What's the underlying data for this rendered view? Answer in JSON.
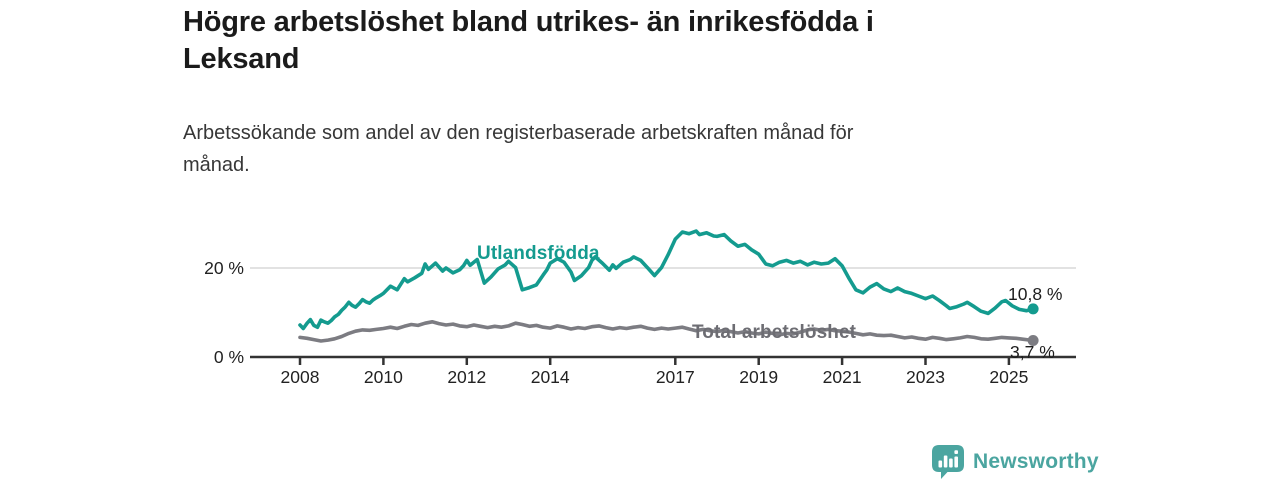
{
  "header": {
    "title": "Högre arbetslöshet bland utrikes- än inrikesfödda i\nLeksand",
    "subtitle": "Arbetssökande som andel av den registerbaserade arbetskraften månad för\nmånad."
  },
  "colors": {
    "title_text": "#1b1b1b",
    "subtitle_text": "#373737",
    "axis": "#333333",
    "gridline": "#d9d9d9",
    "tick_text": "#222222",
    "series_foreign": "#149b8f",
    "series_total": "#7c7c82",
    "series_total_label": "#6d6d73",
    "end_label_text": "#1d1d1d",
    "brand_teal": "#4ba5a0"
  },
  "footer": {
    "brand": "Newsworthy",
    "logo_icon": "bar-chart-speech-bubble-icon"
  },
  "chart_data": {
    "type": "line",
    "title": "Högre arbetslöshet bland utrikes- än inrikesfödda i Leksand",
    "subtitle": "Arbetssökande som andel av den registerbaserade arbetskraften månad för månad.",
    "xlabel": "",
    "ylabel": "",
    "x_range": [
      2008,
      2025.8
    ],
    "ylim": [
      0,
      30
    ],
    "grid": "horizontal-at-20-only",
    "legend_position": "inline-labels-on-lines",
    "y_ticks": [
      {
        "value": 20,
        "label": "20 %"
      },
      {
        "value": 0,
        "label": "0 %"
      }
    ],
    "x_ticks": [
      {
        "value": 2008,
        "label": "2008"
      },
      {
        "value": 2010,
        "label": "2010"
      },
      {
        "value": 2012,
        "label": "2012"
      },
      {
        "value": 2014,
        "label": "2014"
      },
      {
        "value": 2017,
        "label": "2017"
      },
      {
        "value": 2019,
        "label": "2019"
      },
      {
        "value": 2021,
        "label": "2021"
      },
      {
        "value": 2023,
        "label": "2023"
      },
      {
        "value": 2025,
        "label": "2025"
      }
    ],
    "series": [
      {
        "name": "Utlandsfödda",
        "color": "#149b8f",
        "end_value": 10.8,
        "end_label": "10,8 %",
        "points": [
          [
            2008.0,
            7.2
          ],
          [
            2008.08,
            6.4
          ],
          [
            2008.17,
            7.6
          ],
          [
            2008.25,
            8.4
          ],
          [
            2008.33,
            7.1
          ],
          [
            2008.42,
            6.7
          ],
          [
            2008.5,
            8.3
          ],
          [
            2008.58,
            7.9
          ],
          [
            2008.67,
            7.6
          ],
          [
            2008.75,
            8.2
          ],
          [
            2008.83,
            9.0
          ],
          [
            2008.92,
            9.6
          ],
          [
            2009.0,
            10.5
          ],
          [
            2009.08,
            11.2
          ],
          [
            2009.17,
            12.3
          ],
          [
            2009.25,
            11.6
          ],
          [
            2009.33,
            11.2
          ],
          [
            2009.42,
            12.0
          ],
          [
            2009.5,
            12.9
          ],
          [
            2009.58,
            12.4
          ],
          [
            2009.67,
            12.1
          ],
          [
            2009.75,
            12.8
          ],
          [
            2009.83,
            13.3
          ],
          [
            2009.92,
            13.8
          ],
          [
            2010.0,
            14.3
          ],
          [
            2010.17,
            15.9
          ],
          [
            2010.33,
            15.1
          ],
          [
            2010.5,
            17.6
          ],
          [
            2010.58,
            16.9
          ],
          [
            2010.75,
            17.8
          ],
          [
            2010.92,
            18.8
          ],
          [
            2011.0,
            20.9
          ],
          [
            2011.08,
            19.7
          ],
          [
            2011.25,
            21.1
          ],
          [
            2011.42,
            19.3
          ],
          [
            2011.5,
            20.0
          ],
          [
            2011.67,
            18.9
          ],
          [
            2011.83,
            19.6
          ],
          [
            2011.92,
            20.5
          ],
          [
            2012.0,
            21.7
          ],
          [
            2012.08,
            20.6
          ],
          [
            2012.25,
            21.9
          ],
          [
            2012.42,
            16.6
          ],
          [
            2012.58,
            18.0
          ],
          [
            2012.75,
            19.8
          ],
          [
            2012.92,
            20.7
          ],
          [
            2013.0,
            21.5
          ],
          [
            2013.17,
            20.1
          ],
          [
            2013.33,
            15.1
          ],
          [
            2013.5,
            15.6
          ],
          [
            2013.67,
            16.2
          ],
          [
            2013.83,
            18.4
          ],
          [
            2013.92,
            19.6
          ],
          [
            2014.0,
            21.1
          ],
          [
            2014.17,
            22.1
          ],
          [
            2014.33,
            21.3
          ],
          [
            2014.5,
            19.1
          ],
          [
            2014.58,
            17.2
          ],
          [
            2014.75,
            18.3
          ],
          [
            2014.92,
            20.1
          ],
          [
            2015.0,
            21.7
          ],
          [
            2015.08,
            22.5
          ],
          [
            2015.25,
            21.1
          ],
          [
            2015.42,
            19.5
          ],
          [
            2015.5,
            20.7
          ],
          [
            2015.58,
            19.9
          ],
          [
            2015.75,
            21.3
          ],
          [
            2015.92,
            21.9
          ],
          [
            2016.0,
            22.5
          ],
          [
            2016.17,
            21.7
          ],
          [
            2016.33,
            20.1
          ],
          [
            2016.5,
            18.3
          ],
          [
            2016.67,
            20.1
          ],
          [
            2016.83,
            23.0
          ],
          [
            2017.0,
            26.5
          ],
          [
            2017.17,
            28.1
          ],
          [
            2017.33,
            27.7
          ],
          [
            2017.5,
            28.3
          ],
          [
            2017.58,
            27.5
          ],
          [
            2017.75,
            27.9
          ],
          [
            2017.92,
            27.2
          ],
          [
            2018.0,
            27.1
          ],
          [
            2018.17,
            27.5
          ],
          [
            2018.33,
            26.1
          ],
          [
            2018.5,
            24.9
          ],
          [
            2018.67,
            25.3
          ],
          [
            2018.83,
            24.1
          ],
          [
            2019.0,
            23.1
          ],
          [
            2019.17,
            20.9
          ],
          [
            2019.33,
            20.5
          ],
          [
            2019.5,
            21.3
          ],
          [
            2019.67,
            21.7
          ],
          [
            2019.83,
            21.1
          ],
          [
            2020.0,
            21.5
          ],
          [
            2020.17,
            20.7
          ],
          [
            2020.33,
            21.3
          ],
          [
            2020.5,
            20.9
          ],
          [
            2020.67,
            21.1
          ],
          [
            2020.83,
            22.1
          ],
          [
            2021.0,
            20.5
          ],
          [
            2021.17,
            17.6
          ],
          [
            2021.33,
            15.1
          ],
          [
            2021.5,
            14.4
          ],
          [
            2021.67,
            15.7
          ],
          [
            2021.83,
            16.5
          ],
          [
            2022.0,
            15.3
          ],
          [
            2022.17,
            14.7
          ],
          [
            2022.33,
            15.5
          ],
          [
            2022.5,
            14.7
          ],
          [
            2022.67,
            14.3
          ],
          [
            2022.83,
            13.7
          ],
          [
            2023.0,
            13.1
          ],
          [
            2023.17,
            13.7
          ],
          [
            2023.33,
            12.7
          ],
          [
            2023.5,
            11.5
          ],
          [
            2023.58,
            10.9
          ],
          [
            2023.75,
            11.3
          ],
          [
            2023.92,
            11.9
          ],
          [
            2024.0,
            12.3
          ],
          [
            2024.17,
            11.3
          ],
          [
            2024.33,
            10.3
          ],
          [
            2024.5,
            9.8
          ],
          [
            2024.67,
            11.0
          ],
          [
            2024.83,
            12.4
          ],
          [
            2024.92,
            12.7
          ],
          [
            2025.08,
            11.5
          ],
          [
            2025.25,
            10.7
          ],
          [
            2025.42,
            10.4
          ],
          [
            2025.58,
            10.8
          ]
        ]
      },
      {
        "name": "Total arbetslöshet",
        "color": "#7c7c82",
        "end_value": 3.7,
        "end_label": "3,7 %",
        "points": [
          [
            2008.0,
            4.4
          ],
          [
            2008.17,
            4.2
          ],
          [
            2008.33,
            3.9
          ],
          [
            2008.5,
            3.6
          ],
          [
            2008.67,
            3.8
          ],
          [
            2008.83,
            4.1
          ],
          [
            2009.0,
            4.6
          ],
          [
            2009.17,
            5.3
          ],
          [
            2009.33,
            5.8
          ],
          [
            2009.5,
            6.1
          ],
          [
            2009.67,
            6.0
          ],
          [
            2009.83,
            6.2
          ],
          [
            2010.0,
            6.4
          ],
          [
            2010.17,
            6.7
          ],
          [
            2010.33,
            6.4
          ],
          [
            2010.5,
            6.9
          ],
          [
            2010.67,
            7.3
          ],
          [
            2010.83,
            7.1
          ],
          [
            2011.0,
            7.6
          ],
          [
            2011.17,
            7.9
          ],
          [
            2011.33,
            7.5
          ],
          [
            2011.5,
            7.2
          ],
          [
            2011.67,
            7.4
          ],
          [
            2011.83,
            7.0
          ],
          [
            2012.0,
            6.8
          ],
          [
            2012.17,
            7.2
          ],
          [
            2012.33,
            6.9
          ],
          [
            2012.5,
            6.6
          ],
          [
            2012.67,
            6.9
          ],
          [
            2012.83,
            6.7
          ],
          [
            2013.0,
            7.0
          ],
          [
            2013.17,
            7.6
          ],
          [
            2013.33,
            7.3
          ],
          [
            2013.5,
            6.9
          ],
          [
            2013.67,
            7.1
          ],
          [
            2013.83,
            6.7
          ],
          [
            2014.0,
            6.5
          ],
          [
            2014.17,
            7.0
          ],
          [
            2014.33,
            6.7
          ],
          [
            2014.5,
            6.3
          ],
          [
            2014.67,
            6.6
          ],
          [
            2014.83,
            6.4
          ],
          [
            2015.0,
            6.8
          ],
          [
            2015.17,
            7.0
          ],
          [
            2015.33,
            6.6
          ],
          [
            2015.5,
            6.3
          ],
          [
            2015.67,
            6.6
          ],
          [
            2015.83,
            6.4
          ],
          [
            2016.0,
            6.7
          ],
          [
            2016.17,
            6.9
          ],
          [
            2016.33,
            6.5
          ],
          [
            2016.5,
            6.2
          ],
          [
            2016.67,
            6.5
          ],
          [
            2016.83,
            6.3
          ],
          [
            2017.0,
            6.5
          ],
          [
            2017.17,
            6.7
          ],
          [
            2017.33,
            6.3
          ],
          [
            2017.5,
            5.9
          ],
          [
            2017.67,
            6.2
          ],
          [
            2017.83,
            5.9
          ],
          [
            2018.0,
            5.7
          ],
          [
            2018.17,
            6.0
          ],
          [
            2018.33,
            5.7
          ],
          [
            2018.5,
            5.4
          ],
          [
            2018.67,
            5.7
          ],
          [
            2018.83,
            5.4
          ],
          [
            2019.0,
            5.2
          ],
          [
            2019.17,
            5.6
          ],
          [
            2019.33,
            5.3
          ],
          [
            2019.5,
            5.0
          ],
          [
            2019.67,
            5.3
          ],
          [
            2019.83,
            5.2
          ],
          [
            2020.0,
            5.6
          ],
          [
            2020.17,
            6.1
          ],
          [
            2020.33,
            6.3
          ],
          [
            2020.5,
            6.0
          ],
          [
            2020.67,
            6.2
          ],
          [
            2020.83,
            5.9
          ],
          [
            2021.0,
            5.8
          ],
          [
            2021.17,
            5.6
          ],
          [
            2021.33,
            5.3
          ],
          [
            2021.5,
            5.0
          ],
          [
            2021.67,
            5.2
          ],
          [
            2021.83,
            4.9
          ],
          [
            2022.0,
            4.8
          ],
          [
            2022.17,
            4.9
          ],
          [
            2022.33,
            4.6
          ],
          [
            2022.5,
            4.3
          ],
          [
            2022.67,
            4.5
          ],
          [
            2022.83,
            4.2
          ],
          [
            2023.0,
            4.0
          ],
          [
            2023.17,
            4.4
          ],
          [
            2023.33,
            4.2
          ],
          [
            2023.5,
            3.9
          ],
          [
            2023.67,
            4.1
          ],
          [
            2023.83,
            4.3
          ],
          [
            2024.0,
            4.6
          ],
          [
            2024.17,
            4.4
          ],
          [
            2024.33,
            4.1
          ],
          [
            2024.5,
            4.0
          ],
          [
            2024.67,
            4.2
          ],
          [
            2024.83,
            4.4
          ],
          [
            2025.0,
            4.3
          ],
          [
            2025.17,
            4.2
          ],
          [
            2025.33,
            4.0
          ],
          [
            2025.58,
            3.7
          ]
        ]
      }
    ]
  }
}
